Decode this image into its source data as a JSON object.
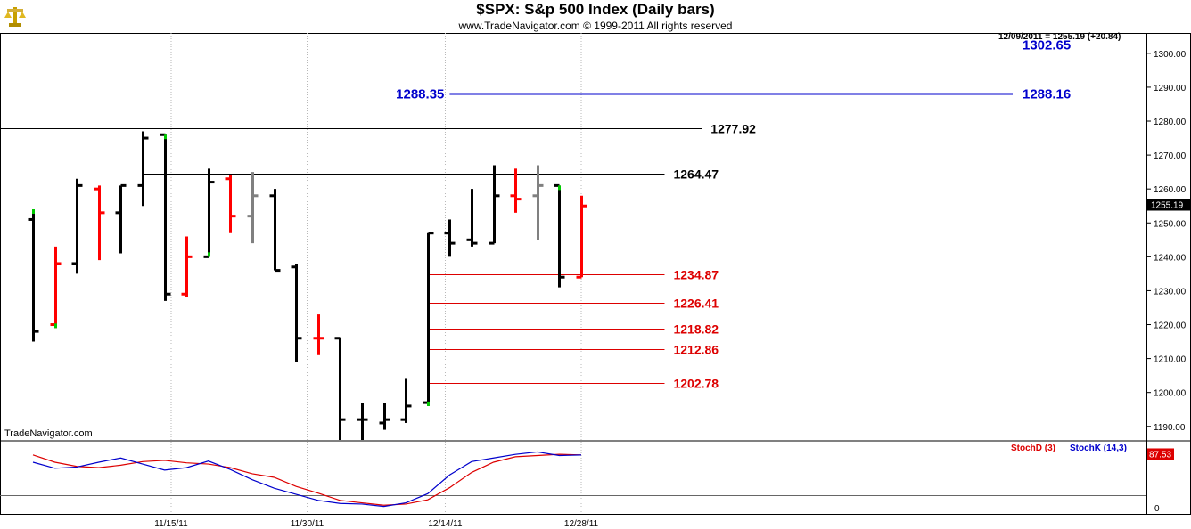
{
  "header": {
    "title": "$SPX:  S&p 500 Index  (Daily bars)",
    "subtitle": "www.TradeNavigator.com © 1999-2011 All rights reserved"
  },
  "brand_label": "TradeNavigator.com",
  "last_info": "12/09/2011 = 1255.19 (+20.84)",
  "logo_icon": "gold-scale-icon",
  "colors": {
    "up": "#000000",
    "down": "#ff0000",
    "neutral": "#808080",
    "flag": "#00cc00",
    "blue": "#0000cc",
    "fib": "#dd0000"
  },
  "chart_data": [
    {
      "type": "bar",
      "subtype": "ohlc",
      "y_range": [
        1186,
        1306
      ],
      "y_ticks": [
        "1190.00",
        "1200.00",
        "1210.00",
        "1220.00",
        "1230.00",
        "1240.00",
        "1250.00",
        "1260.00",
        "1270.00",
        "1280.00",
        "1290.00",
        "1300.00"
      ],
      "y_tick_values": [
        1190,
        1200,
        1210,
        1220,
        1230,
        1240,
        1250,
        1260,
        1270,
        1280,
        1290,
        1300
      ],
      "x_labels": [
        "11/15/11",
        "11/30/11",
        "12/14/11",
        "12/28/11"
      ],
      "x_label_index": [
        6.3,
        12.5,
        18.8,
        25
      ],
      "bars": [
        {
          "o": 1251,
          "h": 1254,
          "l": 1215,
          "c": 1218,
          "color": "up",
          "flag": "top"
        },
        {
          "o": 1220,
          "h": 1243,
          "l": 1219,
          "c": 1238,
          "color": "down",
          "flag": "bottom"
        },
        {
          "o": 1238,
          "h": 1263,
          "l": 1235,
          "c": 1261,
          "color": "up"
        },
        {
          "o": 1260,
          "h": 1261,
          "l": 1239,
          "c": 1253,
          "color": "down"
        },
        {
          "o": 1253,
          "h": 1261,
          "l": 1241,
          "c": 1261,
          "color": "up"
        },
        {
          "o": 1261,
          "h": 1277,
          "l": 1255,
          "c": 1275,
          "color": "up"
        },
        {
          "o": 1276,
          "h": 1276,
          "l": 1227,
          "c": 1229,
          "color": "up",
          "flag": "top"
        },
        {
          "o": 1229,
          "h": 1246,
          "l": 1228,
          "c": 1240,
          "color": "down"
        },
        {
          "o": 1240,
          "h": 1266,
          "l": 1240,
          "c": 1262,
          "color": "up",
          "flag": "bottom"
        },
        {
          "o": 1263,
          "h": 1264,
          "l": 1247,
          "c": 1252,
          "color": "down"
        },
        {
          "o": 1252,
          "h": 1265,
          "l": 1244,
          "c": 1258,
          "color": "neutral"
        },
        {
          "o": 1258,
          "h": 1260,
          "l": 1236,
          "c": 1236,
          "color": "up"
        },
        {
          "o": 1237,
          "h": 1238,
          "l": 1209,
          "c": 1216,
          "color": "up"
        },
        {
          "o": 1216,
          "h": 1223,
          "l": 1211,
          "c": 1216,
          "color": "down"
        },
        {
          "o": 1216,
          "h": 1216,
          "l": 1186,
          "c": 1192,
          "color": "up"
        },
        {
          "o": 1192,
          "h": 1197,
          "l": 1186,
          "c": 1192,
          "color": "up"
        },
        {
          "o": 1191,
          "h": 1197,
          "l": 1189,
          "c": 1192,
          "color": "up"
        },
        {
          "o": 1192,
          "h": 1204,
          "l": 1191,
          "c": 1196,
          "color": "up"
        },
        {
          "o": 1197,
          "h": 1247,
          "l": 1196,
          "c": 1247,
          "color": "up",
          "flag": "bottom"
        },
        {
          "o": 1247,
          "h": 1251,
          "l": 1240,
          "c": 1244,
          "color": "up"
        },
        {
          "o": 1245,
          "h": 1260,
          "l": 1243,
          "c": 1244,
          "color": "up"
        },
        {
          "o": 1244,
          "h": 1267,
          "l": 1244,
          "c": 1258,
          "color": "up"
        },
        {
          "o": 1258,
          "h": 1266,
          "l": 1253,
          "c": 1257,
          "color": "down"
        },
        {
          "o": 1258,
          "h": 1267,
          "l": 1245,
          "c": 1261,
          "color": "neutral"
        },
        {
          "o": 1261,
          "h": 1261,
          "l": 1231,
          "c": 1234,
          "color": "up",
          "flag": "top"
        },
        {
          "o": 1234,
          "h": 1258,
          "l": 1234,
          "c": 1255,
          "color": "down"
        }
      ],
      "levels": [
        {
          "value": 1302.65,
          "label": "1302.65",
          "color": "blue",
          "weight": 1,
          "from_index": 19,
          "label_side": "right-axis"
        },
        {
          "value": 1288.16,
          "label": "1288.16",
          "left_label": "1288.35",
          "color": "blue",
          "weight": 2,
          "from_index": 19,
          "label_side": "right-axis"
        },
        {
          "value": 1277.92,
          "label": "1277.92",
          "color": "black",
          "weight": 1,
          "from_index": -1,
          "to_index": 30.5
        },
        {
          "value": 1264.47,
          "label": "1264.47",
          "color": "black",
          "weight": 1,
          "from_index": 5,
          "to_index": 28.8
        },
        {
          "value": 1234.87,
          "label": "1234.87",
          "color": "fib",
          "weight": 1,
          "from_index": 18,
          "to_index": 28.8
        },
        {
          "value": 1226.41,
          "label": "1226.41",
          "color": "fib",
          "weight": 1,
          "from_index": 18,
          "to_index": 28.8
        },
        {
          "value": 1218.82,
          "label": "1218.82",
          "color": "fib",
          "weight": 1,
          "from_index": 18,
          "to_index": 28.8
        },
        {
          "value": 1212.86,
          "label": "1212.86",
          "color": "fib",
          "weight": 1,
          "from_index": 18,
          "to_index": 28.8
        },
        {
          "value": 1202.78,
          "label": "1202.78",
          "color": "fib",
          "weight": 1,
          "from_index": 18,
          "to_index": 28.8
        }
      ],
      "last_price_label": "1255.19",
      "last_price": 1255.19
    },
    {
      "type": "line",
      "title": "",
      "y_range": [
        0,
        100
      ],
      "y_tick_labels": [
        "0"
      ],
      "value_label": "87.53",
      "legend": [
        "StochD (3)",
        "StochK (14,3)"
      ],
      "series": [
        {
          "name": "StochD (3)",
          "color": "fib",
          "values": [
            87,
            75,
            68,
            66,
            70,
            76,
            78,
            74,
            72,
            66,
            56,
            50,
            35,
            24,
            12,
            8,
            4,
            6,
            13,
            33,
            58,
            75,
            84,
            86,
            88,
            87
          ]
        },
        {
          "name": "StochK (14,3)",
          "color": "blue",
          "values": [
            75,
            65,
            67,
            75,
            82,
            72,
            62,
            66,
            77,
            63,
            46,
            32,
            22,
            12,
            7,
            6,
            2,
            8,
            23,
            54,
            76,
            82,
            88,
            92,
            86,
            87
          ]
        }
      ]
    }
  ]
}
